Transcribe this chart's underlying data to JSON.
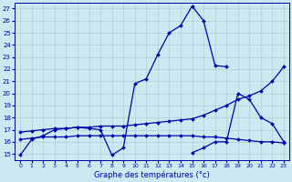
{
  "xlabel": "Graphe des températures (°c)",
  "bg_color": "#cce8f0",
  "line_color": "#0000aa",
  "grid_color": "#b0cfd8",
  "xlim": [
    -0.5,
    23.5
  ],
  "ylim": [
    14.5,
    27.5
  ],
  "yticks": [
    15,
    16,
    17,
    18,
    19,
    20,
    21,
    22,
    23,
    24,
    25,
    26,
    27
  ],
  "xticks": [
    0,
    1,
    2,
    3,
    4,
    5,
    6,
    7,
    8,
    9,
    10,
    11,
    12,
    13,
    14,
    15,
    16,
    17,
    18,
    19,
    20,
    21,
    22,
    23
  ],
  "line1_x": [
    0,
    1,
    2,
    3,
    4,
    5,
    6,
    7,
    8,
    9,
    10,
    11,
    12,
    13,
    14,
    15,
    16,
    17,
    18
  ],
  "line1_y": [
    14.9,
    16.2,
    16.5,
    17.0,
    17.1,
    17.2,
    17.1,
    17.0,
    14.9,
    15.5,
    20.8,
    21.2,
    23.2,
    25.0,
    25.6,
    27.2,
    26.0,
    22.3,
    22.2
  ],
  "line2_x": [
    15,
    16,
    17,
    18,
    19,
    20,
    21,
    22,
    23
  ],
  "line2_y": [
    15.1,
    15.5,
    16.0,
    16.0,
    20.0,
    19.5,
    18.0,
    17.5,
    16.0
  ],
  "line3_x": [
    0,
    1,
    2,
    3,
    4,
    5,
    6,
    7,
    8,
    9,
    10,
    11,
    12,
    13,
    14,
    15,
    16,
    17,
    18,
    19,
    20,
    21,
    22,
    23
  ],
  "line3_y": [
    16.8,
    16.9,
    17.0,
    17.1,
    17.1,
    17.2,
    17.2,
    17.3,
    17.3,
    17.3,
    17.4,
    17.5,
    17.6,
    17.7,
    17.8,
    17.9,
    18.2,
    18.6,
    19.0,
    19.5,
    19.8,
    20.2,
    21.0,
    22.2
  ],
  "line4_x": [
    0,
    1,
    2,
    3,
    4,
    5,
    6,
    7,
    8,
    9,
    10,
    11,
    12,
    13,
    14,
    15,
    16,
    17,
    18,
    19,
    20,
    21,
    22,
    23
  ],
  "line4_y": [
    16.2,
    16.3,
    16.4,
    16.4,
    16.4,
    16.5,
    16.5,
    16.5,
    16.5,
    16.5,
    16.5,
    16.5,
    16.5,
    16.5,
    16.5,
    16.5,
    16.4,
    16.4,
    16.3,
    16.2,
    16.1,
    16.0,
    16.0,
    15.9
  ]
}
